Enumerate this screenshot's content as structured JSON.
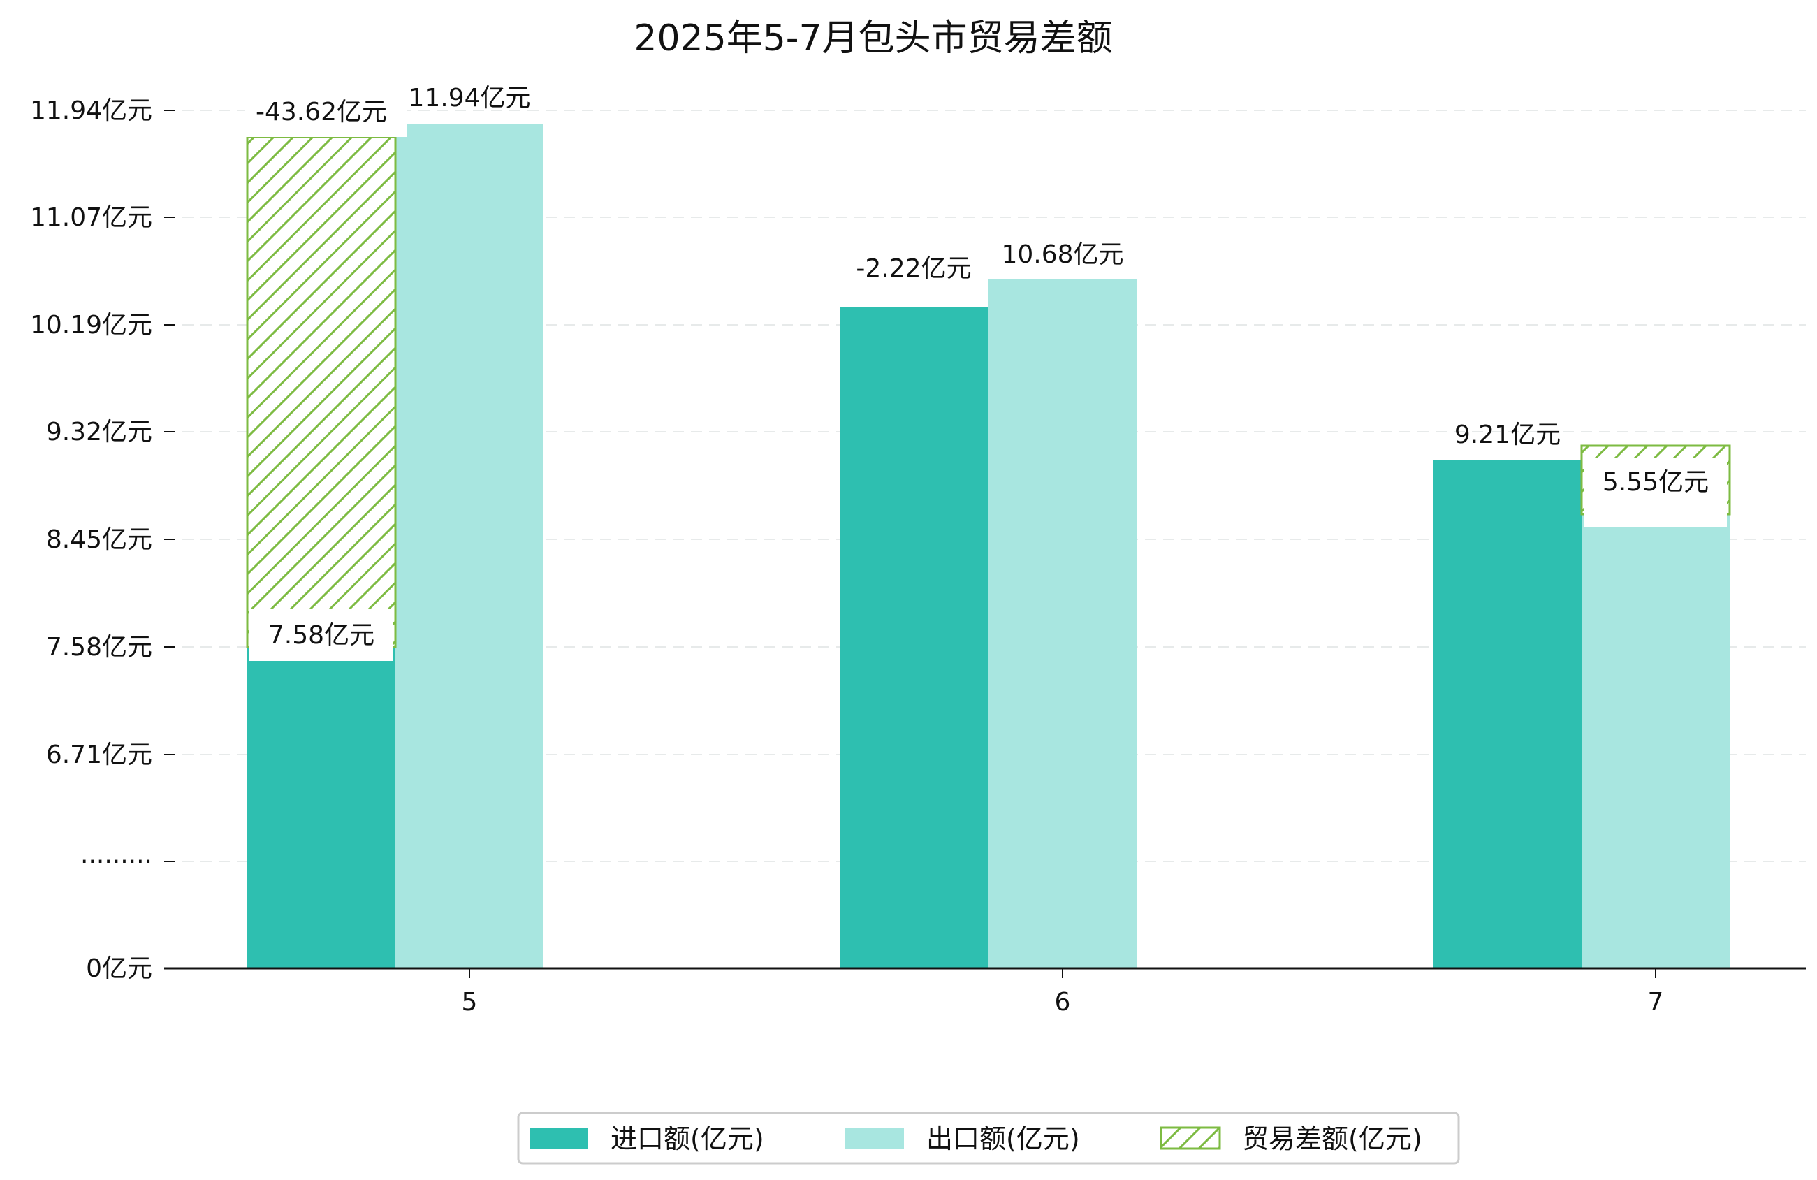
{
  "chart_data": {
    "type": "bar",
    "title": "2025年5-7月包头市贸易差额",
    "xlabel": "",
    "ylabel": "",
    "categories": [
      "5",
      "6",
      "7"
    ],
    "series": [
      {
        "name": "进口额(亿元)",
        "values": [
          7.58,
          10.26,
          9.21
        ],
        "labels": [
          "7.58亿元",
          "",
          "9.21亿元"
        ],
        "color": "#2ebfb0"
      },
      {
        "name": "出口额(亿元)",
        "values": [
          11.94,
          10.68,
          8.5
        ],
        "labels": [
          "11.94亿元",
          "10.68亿元",
          ""
        ],
        "color": "#a8e6e0"
      },
      {
        "name": "贸易差额(亿元)",
        "values": [
          -43.62,
          -2.22,
          5.55
        ],
        "labels": [
          "-43.62亿元",
          "-2.22亿元",
          "5.55亿元"
        ],
        "color": "#7dbb42",
        "pattern": "hatch"
      }
    ],
    "y_axis": {
      "ticks": [
        "0亿元",
        "·········",
        "6.71亿元",
        "7.58亿元",
        "8.45亿元",
        "9.32亿元",
        "10.19亿元",
        "11.07亿元",
        "11.94亿元"
      ],
      "tick_values": [
        0,
        5.84,
        6.71,
        7.58,
        8.45,
        9.32,
        10.19,
        11.07,
        11.94
      ],
      "broken_axis": true
    },
    "grid": "horizontal dashed",
    "legend_position": "bottom-center"
  }
}
